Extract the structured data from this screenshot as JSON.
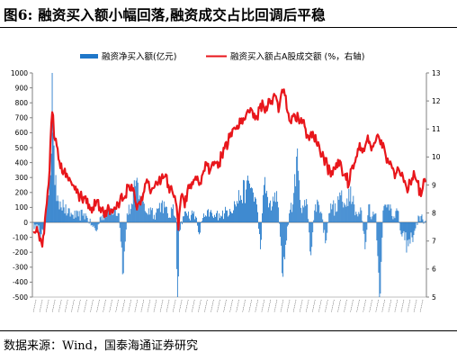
{
  "figure": {
    "title": "图6:  融资买入额小幅回落,融资成交占比回调后平稳",
    "source": "数据来源：Wind，国泰海通证券研究"
  },
  "colors": {
    "bar": "#1F77C9",
    "line": "#E8161B",
    "axis": "#808080"
  },
  "chart_data": {
    "type": "bar+line",
    "legend": [
      "融资净买入额(亿元)",
      "融资买入额占A股成交额 (%，右轴)"
    ],
    "legend_position": "top",
    "grid": false,
    "y_left": {
      "min": -500,
      "max": 1000,
      "step": 100,
      "ticks": [
        "-500",
        "-400",
        "-300",
        "-200",
        "-100",
        "0",
        "100",
        "200",
        "300",
        "400",
        "500",
        "600",
        "700",
        "800",
        "900",
        "1000"
      ]
    },
    "y_right": {
      "min": 5,
      "max": 13,
      "step": 1,
      "ticks": [
        "5",
        "6",
        "7",
        "8",
        "9",
        "10",
        "11",
        "12",
        "13"
      ]
    },
    "x_tick_labels": "dense rotated date labels (illegible)",
    "series": [
      {
        "name": "融资净买入额(亿元)",
        "type": "bar",
        "axis": "left",
        "anchors": [
          [
            0,
            0
          ],
          [
            3,
            -60
          ],
          [
            6,
            -20
          ],
          [
            9,
            -80
          ],
          [
            12,
            -50
          ],
          [
            15,
            120
          ],
          [
            18,
            300
          ],
          [
            20,
            460
          ],
          [
            21,
            1000
          ],
          [
            22,
            600
          ],
          [
            24,
            250
          ],
          [
            27,
            180
          ],
          [
            30,
            140
          ],
          [
            34,
            100
          ],
          [
            38,
            60
          ],
          [
            44,
            50
          ],
          [
            50,
            40
          ],
          [
            56,
            60
          ],
          [
            60,
            30
          ],
          [
            66,
            -30
          ],
          [
            70,
            -60
          ],
          [
            75,
            40
          ],
          [
            80,
            60
          ],
          [
            85,
            80
          ],
          [
            90,
            100
          ],
          [
            95,
            60
          ],
          [
            100,
            -340
          ],
          [
            104,
            60
          ],
          [
            110,
            120
          ],
          [
            114,
            280
          ],
          [
            118,
            180
          ],
          [
            122,
            140
          ],
          [
            126,
            60
          ],
          [
            130,
            100
          ],
          [
            134,
            50
          ],
          [
            138,
            90
          ],
          [
            142,
            130
          ],
          [
            146,
            100
          ],
          [
            150,
            30
          ],
          [
            154,
            90
          ],
          [
            158,
            30
          ],
          [
            160,
            -500
          ],
          [
            162,
            -60
          ],
          [
            166,
            40
          ],
          [
            170,
            60
          ],
          [
            175,
            50
          ],
          [
            180,
            40
          ],
          [
            184,
            -80
          ],
          [
            188,
            30
          ],
          [
            192,
            40
          ],
          [
            196,
            70
          ],
          [
            200,
            30
          ],
          [
            206,
            60
          ],
          [
            212,
            60
          ],
          [
            218,
            90
          ],
          [
            224,
            120
          ],
          [
            230,
            180
          ],
          [
            236,
            220
          ],
          [
            240,
            260
          ],
          [
            244,
            200
          ],
          [
            248,
            120
          ],
          [
            252,
            -180
          ],
          [
            256,
            250
          ],
          [
            260,
            170
          ],
          [
            264,
            80
          ],
          [
            268,
            200
          ],
          [
            272,
            100
          ],
          [
            276,
            -340
          ],
          [
            280,
            -150
          ],
          [
            284,
            60
          ],
          [
            288,
            120
          ],
          [
            292,
            440
          ],
          [
            296,
            150
          ],
          [
            300,
            100
          ],
          [
            304,
            120
          ],
          [
            308,
            -220
          ],
          [
            312,
            80
          ],
          [
            316,
            140
          ],
          [
            320,
            60
          ],
          [
            324,
            -140
          ],
          [
            328,
            60
          ],
          [
            332,
            120
          ],
          [
            336,
            70
          ],
          [
            340,
            200
          ],
          [
            344,
            100
          ],
          [
            348,
            160
          ],
          [
            352,
            240
          ],
          [
            356,
            120
          ],
          [
            360,
            40
          ],
          [
            364,
            80
          ],
          [
            368,
            -180
          ],
          [
            372,
            120
          ],
          [
            376,
            40
          ],
          [
            380,
            60
          ],
          [
            384,
            -500
          ],
          [
            388,
            80
          ],
          [
            392,
            100
          ],
          [
            396,
            120
          ],
          [
            400,
            40
          ],
          [
            404,
            80
          ],
          [
            408,
            -80
          ],
          [
            412,
            -120
          ],
          [
            416,
            -160
          ],
          [
            420,
            -100
          ],
          [
            424,
            -40
          ],
          [
            428,
            40
          ],
          [
            432,
            20
          ],
          [
            435,
            10
          ]
        ]
      },
      {
        "name": "融资买入额占A股成交额 (%，右轴)",
        "type": "line",
        "axis": "right",
        "anchors": [
          [
            0,
            7.3
          ],
          [
            4,
            7.5
          ],
          [
            8,
            7.1
          ],
          [
            10,
            6.8
          ],
          [
            13,
            7.8
          ],
          [
            16,
            8.8
          ],
          [
            18,
            9.5
          ],
          [
            20,
            11.2
          ],
          [
            21,
            11.6
          ],
          [
            24,
            10.6
          ],
          [
            27,
            10.3
          ],
          [
            30,
            9.6
          ],
          [
            34,
            9.5
          ],
          [
            38,
            9.3
          ],
          [
            44,
            9.0
          ],
          [
            50,
            8.7
          ],
          [
            54,
            8.5
          ],
          [
            58,
            8.6
          ],
          [
            62,
            8.3
          ],
          [
            66,
            8.2
          ],
          [
            70,
            8.4
          ],
          [
            74,
            8.2
          ],
          [
            78,
            8.0
          ],
          [
            82,
            8.1
          ],
          [
            86,
            8.1
          ],
          [
            90,
            8.2
          ],
          [
            96,
            8.4
          ],
          [
            102,
            8.6
          ],
          [
            106,
            9.0
          ],
          [
            110,
            8.8
          ],
          [
            114,
            8.3
          ],
          [
            118,
            8.4
          ],
          [
            122,
            8.7
          ],
          [
            126,
            9.2
          ],
          [
            130,
            8.7
          ],
          [
            134,
            8.9
          ],
          [
            138,
            9.0
          ],
          [
            142,
            9.2
          ],
          [
            146,
            9.3
          ],
          [
            150,
            9.0
          ],
          [
            154,
            8.8
          ],
          [
            158,
            8.4
          ],
          [
            161,
            7.4
          ],
          [
            164,
            8.6
          ],
          [
            168,
            8.2
          ],
          [
            172,
            9.0
          ],
          [
            176,
            9.1
          ],
          [
            180,
            9.3
          ],
          [
            184,
            9.0
          ],
          [
            188,
            9.4
          ],
          [
            192,
            9.8
          ],
          [
            196,
            9.5
          ],
          [
            200,
            9.7
          ],
          [
            206,
            9.8
          ],
          [
            212,
            10.3
          ],
          [
            218,
            10.7
          ],
          [
            224,
            11.0
          ],
          [
            230,
            11.2
          ],
          [
            236,
            11.5
          ],
          [
            242,
            11.7
          ],
          [
            248,
            11.4
          ],
          [
            252,
            11.9
          ],
          [
            256,
            11.7
          ],
          [
            260,
            11.8
          ],
          [
            264,
            12.0
          ],
          [
            268,
            12.2
          ],
          [
            272,
            11.6
          ],
          [
            276,
            12.4
          ],
          [
            279,
            12.2
          ],
          [
            282,
            11.6
          ],
          [
            286,
            11.2
          ],
          [
            290,
            11.5
          ],
          [
            294,
            11.4
          ],
          [
            298,
            11.2
          ],
          [
            302,
            11.0
          ],
          [
            306,
            10.6
          ],
          [
            310,
            10.9
          ],
          [
            314,
            10.5
          ],
          [
            318,
            10.2
          ],
          [
            322,
            10.0
          ],
          [
            326,
            9.7
          ],
          [
            330,
            9.3
          ],
          [
            334,
            9.6
          ],
          [
            338,
            9.9
          ],
          [
            342,
            9.6
          ],
          [
            346,
            9.4
          ],
          [
            350,
            9.0
          ],
          [
            354,
            9.7
          ],
          [
            358,
            10.0
          ],
          [
            362,
            10.5
          ],
          [
            366,
            10.3
          ],
          [
            370,
            10.6
          ],
          [
            374,
            10.4
          ],
          [
            378,
            10.5
          ],
          [
            382,
            10.8
          ],
          [
            386,
            10.6
          ],
          [
            390,
            10.2
          ],
          [
            394,
            9.8
          ],
          [
            398,
            9.6
          ],
          [
            402,
            9.4
          ],
          [
            406,
            9.5
          ],
          [
            410,
            9.3
          ],
          [
            414,
            8.9
          ],
          [
            418,
            9.1
          ],
          [
            422,
            9.5
          ],
          [
            426,
            9.1
          ],
          [
            430,
            8.6
          ],
          [
            433,
            9.2
          ],
          [
            435,
            9.1
          ]
        ]
      }
    ]
  }
}
